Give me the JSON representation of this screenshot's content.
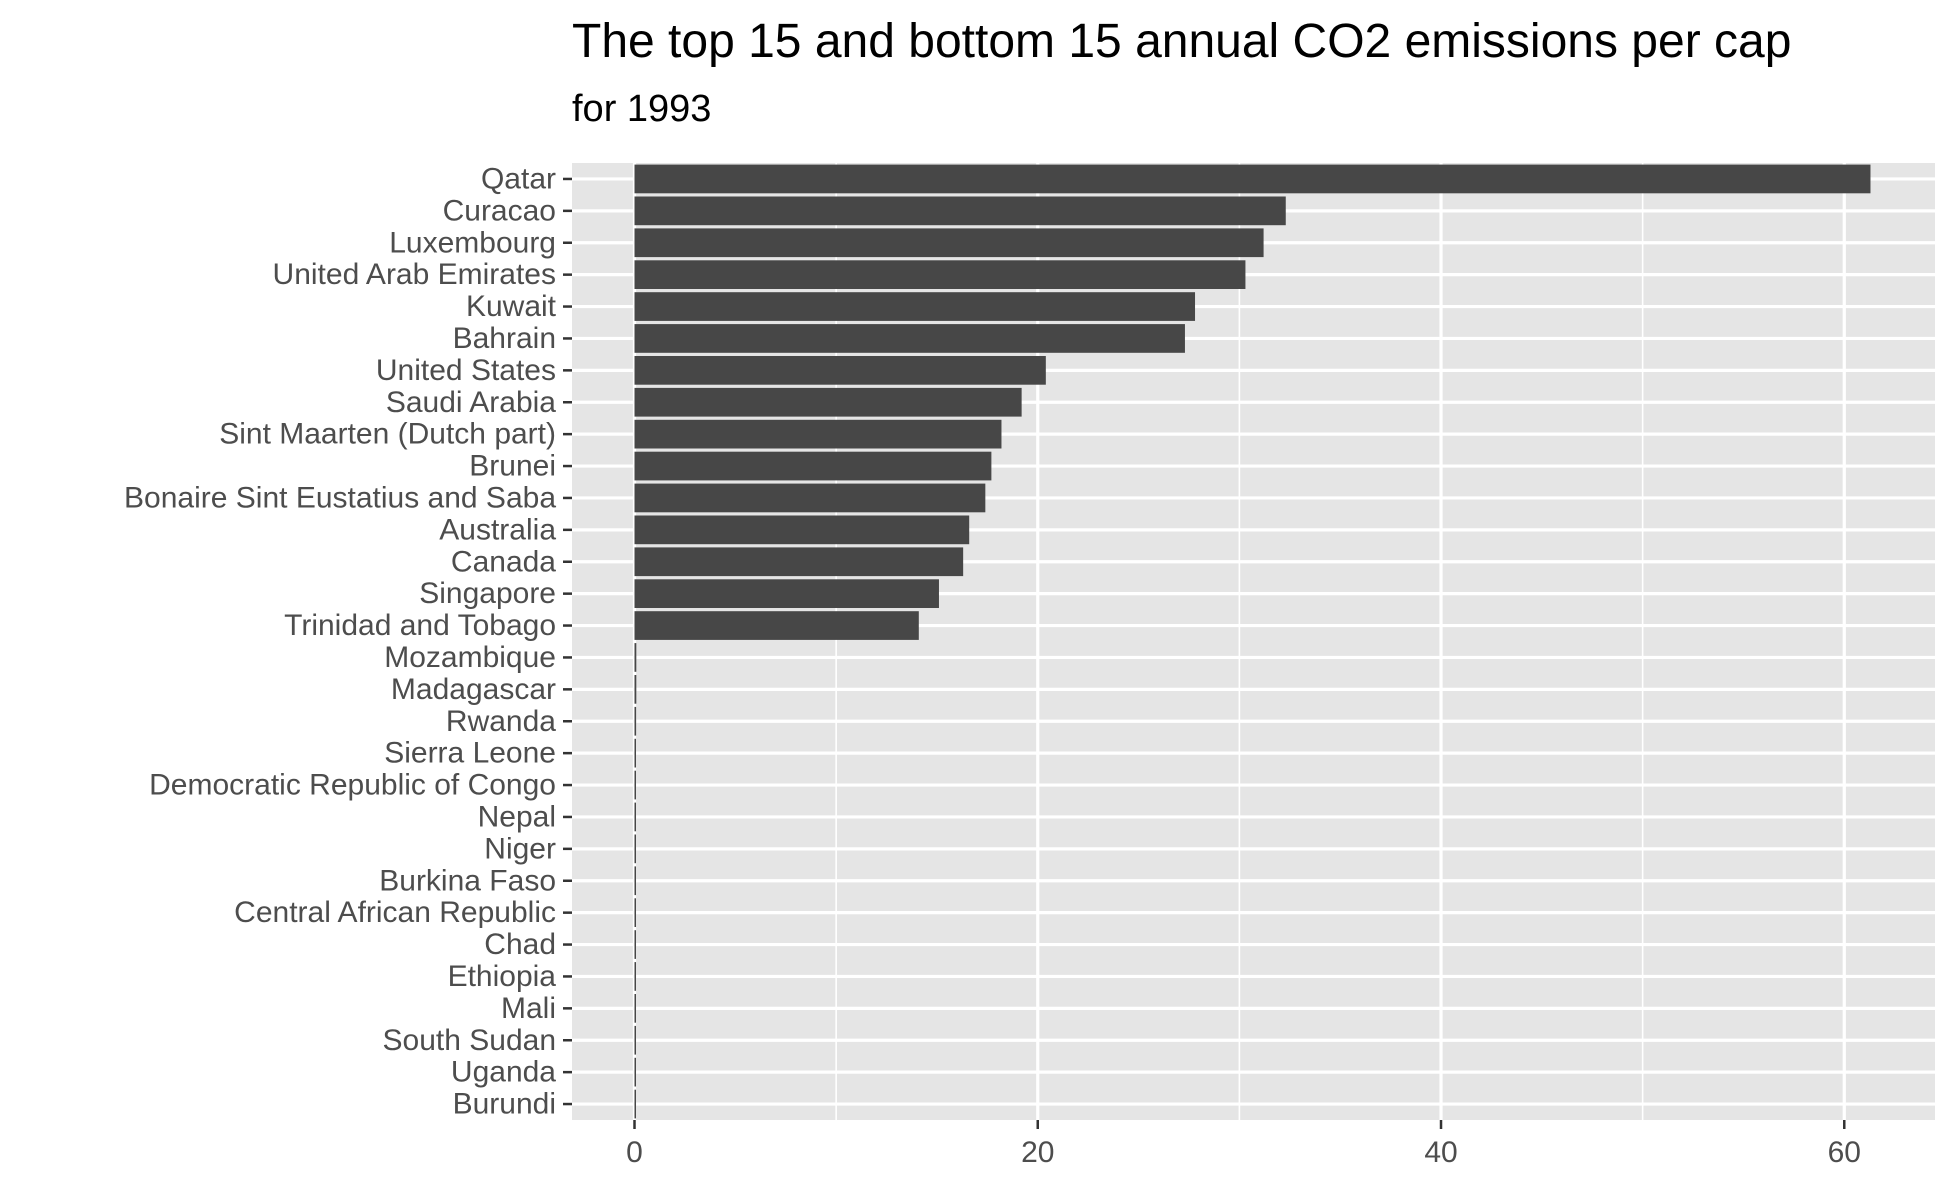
{
  "chart_data": {
    "type": "bar",
    "orientation": "horizontal",
    "title": "The top 15 and bottom 15 annual CO2 emissions per cap",
    "subtitle": "for 1993",
    "xlabel": "",
    "ylabel": "",
    "xlim": [
      -3.1,
      64.5
    ],
    "x_ticks": [
      0,
      20,
      40,
      60
    ],
    "grid": true,
    "legend": "none",
    "colors": {
      "bar": "#474747",
      "panel": "#e5e5e5",
      "grid": "#ffffff",
      "axis_text": "#4d4d4d"
    },
    "categories": [
      "Qatar",
      "Curacao",
      "Luxembourg",
      "United Arab Emirates",
      "Kuwait",
      "Bahrain",
      "United States",
      "Saudi Arabia",
      "Sint Maarten (Dutch part)",
      "Brunei",
      "Bonaire Sint Eustatius and Saba",
      "Australia",
      "Canada",
      "Singapore",
      "Trinidad and Tobago",
      "Mozambique",
      "Madagascar",
      "Rwanda",
      "Sierra Leone",
      "Democratic Republic of Congo",
      "Nepal",
      "Niger",
      "Burkina Faso",
      "Central African Republic",
      "Chad",
      "Ethiopia",
      "Mali",
      "South Sudan",
      "Uganda",
      "Burundi"
    ],
    "values": [
      61.3,
      32.3,
      31.2,
      30.3,
      27.8,
      27.3,
      20.4,
      19.2,
      18.2,
      17.7,
      17.4,
      16.6,
      16.3,
      15.1,
      14.1,
      0.09,
      0.09,
      0.08,
      0.07,
      0.06,
      0.05,
      0.05,
      0.05,
      0.05,
      0.04,
      0.04,
      0.04,
      0.04,
      0.04,
      0.03
    ]
  }
}
